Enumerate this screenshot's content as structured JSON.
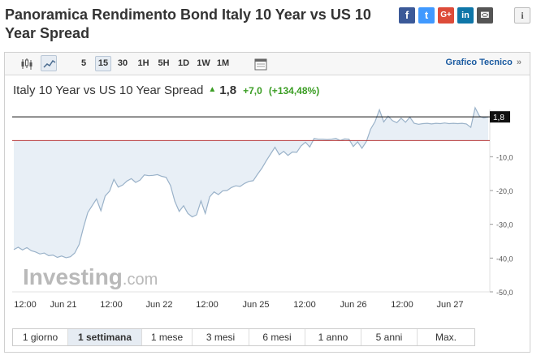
{
  "header": {
    "title": "Panoramica Rendimento Bond Italy 10 Year vs US 10 Year Spread"
  },
  "share": {
    "facebook": "f",
    "twitter": "t",
    "google": "G+",
    "linkedin": "in",
    "mail": "✉",
    "info": "i"
  },
  "toolbar": {
    "timeframes": [
      "5",
      "15",
      "30",
      "1H",
      "5H",
      "1D",
      "1W",
      "1M"
    ],
    "selected_timeframe": "15",
    "technical_chart_label": "Grafico Tecnico",
    "technical_chart_arrow": "»",
    "icons": [
      "candlestick-icon",
      "line-chart-icon",
      "calendar-icon"
    ]
  },
  "quote": {
    "name": "Italy 10 Year vs US 10 Year Spread",
    "arrow": "▲",
    "last": "1,8",
    "change": "+7,0",
    "change_pct": "(+134,48%)"
  },
  "watermark": {
    "brand": "Investing",
    "suffix": ".com"
  },
  "ranges": {
    "items": [
      "1 giorno",
      "1 settimana",
      "1 mese",
      "3 mesi",
      "6 mesi",
      "1 anno",
      "5 anni",
      "Max."
    ],
    "selected": "1 settimana"
  },
  "colors": {
    "line": "#9ab2c9",
    "fill": "#e8eff6",
    "prev_close": "#b83a3a",
    "current": "#111111",
    "positive": "#3a9d23",
    "link": "#1a5aa0"
  },
  "chart_data": {
    "type": "area",
    "y_tick_labels": [
      "-10,0",
      "-20,0",
      "-30,0",
      "-40,0",
      "-50,0"
    ],
    "y_ticks": [
      -10,
      -20,
      -30,
      -40,
      -50
    ],
    "ylim": [
      -50,
      4
    ],
    "x_tick_labels": [
      "12:00",
      "Jun 21",
      "12:00",
      "Jun 22",
      "12:00",
      "Jun 25",
      "12:00",
      "Jun 26",
      "12:00",
      "Jun 27"
    ],
    "current_value": 1.8,
    "current_label": "1,8",
    "previous_close": -5.2,
    "series": [
      {
        "values": [
          -37.5,
          -36.8,
          -37.6,
          -36.9,
          -37.8,
          -38.2,
          -38.8,
          -38.5,
          -39.3,
          -39.1,
          -39.8,
          -39.4,
          -39.9,
          -39.6,
          -38.5,
          -36,
          -31,
          -26.5,
          -24.5,
          -22.5,
          -26,
          -21.6,
          -20.2,
          -16.7,
          -19,
          -18.4,
          -17.2,
          -16.5,
          -17.6,
          -16.9,
          -15.4,
          -15.6,
          -15.5,
          -15.3,
          -15.8,
          -16.1,
          -18.5,
          -23.2,
          -26.2,
          -24.5,
          -26.8,
          -27.8,
          -27.2,
          -23.1,
          -26.8,
          -21.9,
          -20.4,
          -21.2,
          -20.1,
          -20.0,
          -19.1,
          -18.6,
          -18.8,
          -17.9,
          -17.3,
          -17.1,
          -15.2,
          -13.4,
          -11.2,
          -9.2,
          -7.2,
          -9.4,
          -8.4,
          -9.6,
          -8.6,
          -8.7,
          -6.8,
          -5.7,
          -7.1,
          -4.6,
          -4.8,
          -4.8,
          -4.9,
          -4.8,
          -4.6,
          -5.2,
          -4.7,
          -4.8,
          -7.0,
          -5.6,
          -7.5,
          -5.5,
          -1.8,
          0.4,
          3.9,
          0.3,
          2.0,
          0.7,
          0.1,
          1.4,
          0.2,
          1.7,
          -0.1,
          -0.4,
          -0.2,
          -0.1,
          -0.3,
          -0.1,
          -0.2,
          0,
          -0.2,
          -0.1,
          -0.2,
          -0.1,
          -0.3,
          -1.3,
          4.5,
          2.0,
          1.5,
          1.8
        ]
      }
    ]
  }
}
